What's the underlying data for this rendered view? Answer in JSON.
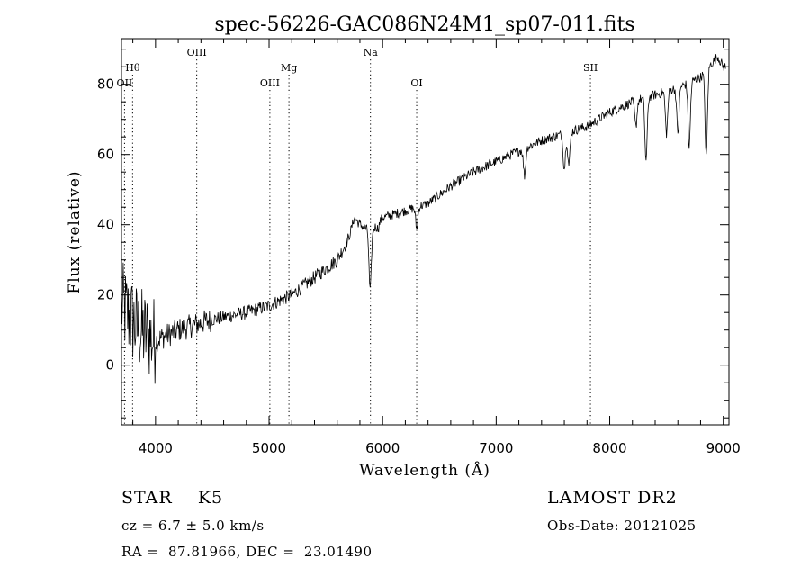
{
  "chart_data": {
    "type": "line",
    "title": "spec-56226-GAC086N24M1_sp07-011.fits",
    "xlabel": "Wavelength (Å)",
    "ylabel": "Flux (relative)",
    "xlim": [
      3700,
      9050
    ],
    "ylim": [
      -17,
      93
    ],
    "x_ticks": [
      "4000",
      "5000",
      "6000",
      "7000",
      "8000",
      "9000"
    ],
    "y_ticks": [
      "0",
      "20",
      "40",
      "60",
      "80"
    ],
    "grid": false,
    "spectral_lines": [
      {
        "name": "OII",
        "wavelength": 3727,
        "row": 3
      },
      {
        "name": "Hθ",
        "wavelength": 3798,
        "row": 2
      },
      {
        "name": "OIII",
        "wavelength": 4363,
        "row": 1
      },
      {
        "name": "OIII",
        "wavelength": 5007,
        "row": 3
      },
      {
        "name": "Mg",
        "wavelength": 5175,
        "row": 2
      },
      {
        "name": "Na",
        "wavelength": 5893,
        "row": 1
      },
      {
        "name": "OI",
        "wavelength": 6300,
        "row": 3
      },
      {
        "name": "SII",
        "wavelength": 7830,
        "row": 2
      }
    ],
    "series": [
      {
        "continuum": [
          [
            3700,
            17
          ],
          [
            3850,
            10
          ],
          [
            4000,
            7
          ],
          [
            4200,
            10
          ],
          [
            4500,
            13
          ],
          [
            4800,
            15
          ],
          [
            5000,
            17
          ],
          [
            5200,
            20
          ],
          [
            5400,
            25
          ],
          [
            5600,
            30
          ],
          [
            5700,
            36
          ],
          [
            5750,
            42
          ],
          [
            5800,
            40
          ],
          [
            5900,
            38
          ],
          [
            6000,
            42
          ],
          [
            6200,
            44
          ],
          [
            6400,
            46
          ],
          [
            6600,
            51
          ],
          [
            6800,
            55
          ],
          [
            7000,
            58
          ],
          [
            7200,
            61
          ],
          [
            7400,
            64
          ],
          [
            7600,
            66
          ],
          [
            7800,
            68
          ],
          [
            8000,
            72
          ],
          [
            8200,
            75
          ],
          [
            8400,
            77
          ],
          [
            8600,
            79
          ],
          [
            8800,
            82
          ],
          [
            8950,
            88
          ],
          [
            9000,
            85
          ]
        ],
        "absorption": [
          [
            5890,
            21
          ],
          [
            5960,
            39
          ],
          [
            6300,
            39
          ],
          [
            7250,
            54
          ],
          [
            7600,
            56
          ],
          [
            7640,
            57
          ],
          [
            8230,
            68
          ],
          [
            8320,
            58
          ],
          [
            8500,
            66
          ],
          [
            8600,
            66
          ],
          [
            8700,
            62
          ],
          [
            8850,
            59
          ]
        ]
      }
    ]
  },
  "info": {
    "object": "STAR    K5",
    "survey": "LAMOST DR2",
    "cz": "cz = 6.7 ± 5.0 km/s",
    "obs_date": "Obs-Date: 20121025",
    "radec": "RA =  87.81966, DEC =  23.01490"
  }
}
